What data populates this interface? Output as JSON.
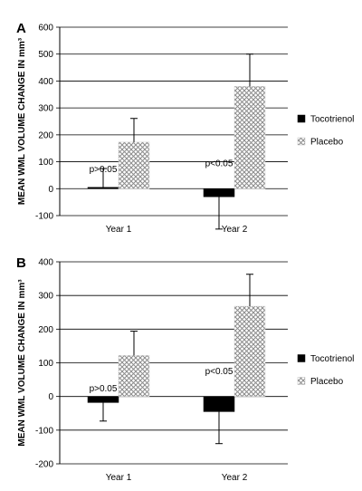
{
  "chart_data": [
    {
      "panel": "A",
      "type": "bar",
      "ylabel": "MEAN WML VOLUME CHANGE IN mm³",
      "ylim": [
        -100,
        600
      ],
      "yticks": [
        600,
        500,
        400,
        300,
        200,
        100,
        0,
        -100
      ],
      "grid": true,
      "legend_position": "right",
      "categories": [
        "Year 1",
        "Year 2"
      ],
      "series": [
        {
          "name": "Tocotrienol",
          "color": "#000000",
          "pattern": "solid",
          "values": [
            5,
            -30
          ],
          "error": [
            70,
            120
          ]
        },
        {
          "name": "Placebo",
          "color": "#b8b8b8",
          "pattern": "crosshatch",
          "values": [
            173,
            380
          ],
          "error": [
            88,
            120
          ]
        }
      ],
      "annotations": [
        "p>0.05",
        "p<0.05"
      ]
    },
    {
      "panel": "B",
      "type": "bar",
      "ylabel": "MEAN WML VOLUME CHANGE IN mm³",
      "ylim": [
        -200,
        400
      ],
      "yticks": [
        400,
        300,
        200,
        100,
        0,
        -100,
        -200
      ],
      "grid": true,
      "legend_position": "right",
      "categories": [
        "Year 1",
        "Year 2"
      ],
      "series": [
        {
          "name": "Tocotrienol",
          "color": "#000000",
          "pattern": "solid",
          "values": [
            -18,
            -45
          ],
          "error": [
            55,
            95
          ]
        },
        {
          "name": "Placebo",
          "color": "#b8b8b8",
          "pattern": "crosshatch",
          "values": [
            122,
            268
          ],
          "error": [
            72,
            95
          ]
        }
      ],
      "annotations": [
        "p>0.05",
        "p<0.05"
      ]
    }
  ]
}
